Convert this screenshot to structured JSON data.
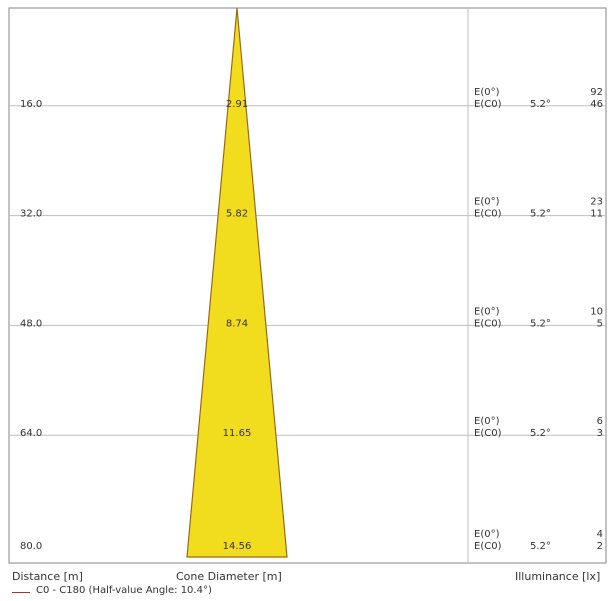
{
  "chart_data": {
    "type": "cone diagram",
    "rows": [
      {
        "distance": "16.0",
        "diameter": "2.91",
        "e0_label": "E(0°)",
        "ec_label": "E(C0)",
        "angle": "5.2°",
        "e0_value": "92",
        "ec_value": "46"
      },
      {
        "distance": "32.0",
        "diameter": "5.82",
        "e0_label": "E(0°)",
        "ec_label": "E(C0)",
        "angle": "5.2°",
        "e0_value": "23",
        "ec_value": "11"
      },
      {
        "distance": "48.0",
        "diameter": "8.74",
        "e0_label": "E(0°)",
        "ec_label": "E(C0)",
        "angle": "5.2°",
        "e0_value": "10",
        "ec_value": "5"
      },
      {
        "distance": "64.0",
        "diameter": "11.65",
        "e0_label": "E(0°)",
        "ec_label": "E(C0)",
        "angle": "5.2°",
        "e0_value": "6",
        "ec_value": "3"
      },
      {
        "distance": "80.0",
        "diameter": "14.56",
        "e0_label": "E(0°)",
        "ec_label": "E(C0)",
        "angle": "5.2°",
        "e0_value": "4",
        "ec_value": "2"
      }
    ],
    "max_distance": 80,
    "max_diameter": 14.56,
    "xlabel_distance": "Distance [m]",
    "xlabel_diameter": "Cone Diameter [m]",
    "xlabel_illuminance": "Illuminance [lx]",
    "legend": "C0 - C180 (Half-value Angle: 10.4°)",
    "colors": {
      "cone_fill": "#f2dc1e",
      "cone_stroke": "#9a6a1a",
      "grid": "#bfbfbf",
      "frame": "#9a9a9a",
      "legend_line": "#b03030"
    }
  }
}
